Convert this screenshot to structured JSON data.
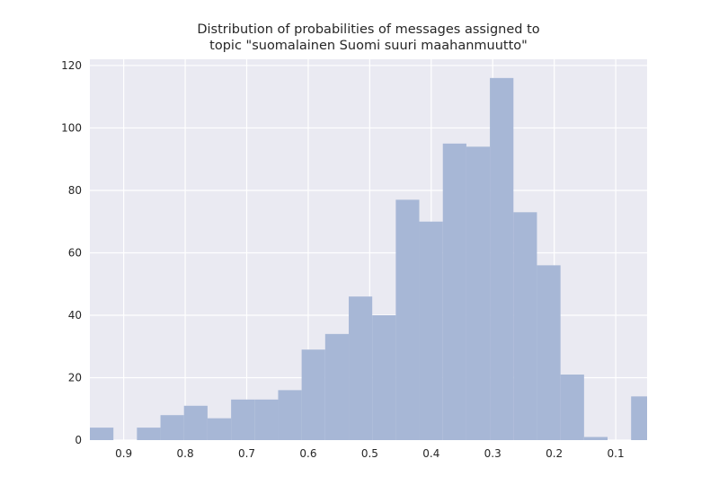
{
  "chart_data": {
    "type": "bar",
    "title_lines": [
      "Distribution of probabilities of messages assigned to",
      "topic \"suomalainen Suomi suuri maahanmuutto\""
    ],
    "xlabel": "",
    "ylabel": "",
    "x_axis_reversed": true,
    "xlim": [
      0.955,
      0.049
    ],
    "ylim": [
      0,
      122
    ],
    "grid": true,
    "x_ticks": [
      0.9,
      0.8,
      0.7,
      0.6,
      0.5,
      0.4,
      0.3,
      0.2,
      0.1
    ],
    "x_tick_labels": [
      "0.9",
      "0.8",
      "0.7",
      "0.6",
      "0.5",
      "0.4",
      "0.3",
      "0.2",
      "0.1"
    ],
    "y_ticks": [
      0,
      20,
      40,
      60,
      80,
      100,
      120
    ],
    "y_tick_labels": [
      "0",
      "20",
      "40",
      "60",
      "80",
      "100",
      "120"
    ],
    "bin_edges": [
      0.955,
      0.9167,
      0.8785,
      0.8402,
      0.802,
      0.7637,
      0.7254,
      0.6872,
      0.6489,
      0.6107,
      0.5724,
      0.5341,
      0.4959,
      0.4576,
      0.4194,
      0.3811,
      0.3428,
      0.3046,
      0.2663,
      0.2281,
      0.1898,
      0.1515,
      0.1133,
      0.075,
      0.049
    ],
    "values": [
      4,
      0,
      4,
      8,
      11,
      7,
      13,
      13,
      16,
      29,
      34,
      46,
      40,
      77,
      70,
      95,
      94,
      116,
      73,
      56,
      21,
      1,
      0,
      14
    ],
    "colors": {
      "bar": "#a7b7d6",
      "plot_background": "#eaeaf2",
      "grid": "#ffffff",
      "text": "#262626"
    }
  }
}
